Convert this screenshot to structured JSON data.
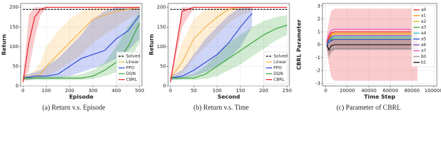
{
  "chart_data": [
    {
      "type": "line",
      "caption": "(a) Return v.s. Episode",
      "xlabel": "Episode",
      "ylabel": "Return",
      "x": [
        0,
        25,
        50,
        75,
        100,
        150,
        200,
        250,
        300,
        350,
        400,
        450,
        500
      ],
      "xlim": [
        -10,
        510
      ],
      "xticks": [
        0,
        100,
        200,
        300,
        400,
        500
      ],
      "ylim": [
        0,
        210
      ],
      "yticks": [
        0,
        50,
        100,
        150,
        200
      ],
      "grid": true,
      "legend": "lower-right",
      "series": [
        {
          "name": "Solved",
          "color": "#000000",
          "dash": true,
          "values": [
            195,
            195,
            195,
            195,
            195,
            195,
            195,
            195,
            195,
            195,
            195,
            195,
            195
          ]
        },
        {
          "name": "Linear",
          "color": "#f5b041",
          "values": [
            20,
            22,
            25,
            30,
            50,
            80,
            110,
            140,
            170,
            180,
            190,
            195,
            200
          ],
          "lower": [
            15,
            15,
            18,
            20,
            25,
            40,
            60,
            80,
            110,
            130,
            150,
            170,
            185
          ],
          "upper": [
            25,
            30,
            40,
            60,
            100,
            140,
            170,
            190,
            200,
            200,
            200,
            200,
            200
          ]
        },
        {
          "name": "PPO",
          "color": "#1f3fd6",
          "values": [
            20,
            22,
            25,
            25,
            25,
            30,
            50,
            70,
            80,
            90,
            120,
            140,
            180
          ],
          "lower": [
            15,
            15,
            18,
            18,
            18,
            20,
            25,
            35,
            45,
            55,
            70,
            90,
            120
          ],
          "upper": [
            25,
            30,
            35,
            40,
            50,
            70,
            100,
            130,
            170,
            190,
            200,
            200,
            200
          ]
        },
        {
          "name": "DQN",
          "color": "#2ca02c",
          "values": [
            20,
            20,
            20,
            20,
            20,
            20,
            20,
            20,
            25,
            40,
            60,
            100,
            160
          ],
          "lower": [
            15,
            15,
            15,
            15,
            15,
            15,
            15,
            15,
            18,
            25,
            35,
            60,
            110
          ],
          "upper": [
            25,
            25,
            25,
            25,
            25,
            25,
            25,
            30,
            40,
            60,
            100,
            150,
            190
          ]
        },
        {
          "name": "CBRL",
          "color": "#e8141c",
          "values": [
            10,
            110,
            175,
            195,
            200,
            200,
            200,
            200,
            200,
            200,
            200,
            200,
            200
          ],
          "lower": [
            5,
            40,
            120,
            180,
            198,
            200,
            200,
            200,
            200,
            200,
            200,
            200,
            200
          ],
          "upper": [
            20,
            180,
            200,
            200,
            200,
            200,
            200,
            200,
            200,
            200,
            200,
            200,
            200
          ]
        }
      ]
    },
    {
      "type": "line",
      "caption": "(b) Return v.s. Time",
      "xlabel": "Second",
      "ylabel": "Return",
      "x": [
        0,
        25,
        50,
        75,
        100,
        125,
        150,
        175,
        200,
        225,
        250
      ],
      "xlim": [
        -5,
        255
      ],
      "xticks": [
        0,
        50,
        100,
        150,
        200,
        250
      ],
      "ylim": [
        0,
        210
      ],
      "yticks": [
        0,
        50,
        100,
        150,
        200
      ],
      "grid": true,
      "legend": "lower-right",
      "series": [
        {
          "name": "Solved",
          "color": "#000000",
          "dash": true,
          "values": [
            195,
            195,
            195,
            195,
            195,
            195,
            195,
            195,
            195,
            195,
            195
          ]
        },
        {
          "name": "Linear",
          "color": "#f5b041",
          "values": [
            20,
            60,
            120,
            150,
            175,
            195,
            200,
            200,
            null,
            null,
            null
          ],
          "lower": [
            15,
            30,
            70,
            100,
            130,
            160,
            180,
            190,
            null,
            null,
            null
          ],
          "upper": [
            25,
            110,
            170,
            195,
            200,
            200,
            200,
            200,
            null,
            null,
            null
          ]
        },
        {
          "name": "PPO",
          "color": "#1f3fd6",
          "values": [
            20,
            25,
            40,
            60,
            80,
            110,
            150,
            185,
            null,
            null,
            null
          ],
          "lower": [
            15,
            18,
            25,
            35,
            50,
            70,
            100,
            150,
            null,
            null,
            null
          ],
          "upper": [
            25,
            40,
            80,
            120,
            150,
            180,
            200,
            200,
            null,
            null,
            null
          ]
        },
        {
          "name": "DQN",
          "color": "#2ca02c",
          "values": [
            20,
            20,
            20,
            30,
            50,
            70,
            90,
            110,
            130,
            145,
            155
          ],
          "lower": [
            15,
            15,
            15,
            18,
            25,
            40,
            55,
            75,
            95,
            115,
            130
          ],
          "upper": [
            25,
            25,
            30,
            50,
            80,
            110,
            130,
            150,
            165,
            175,
            180
          ]
        },
        {
          "name": "CBRL",
          "color": "#e8141c",
          "values": [
            10,
            190,
            200,
            200,
            200,
            200,
            200,
            200,
            200,
            200,
            200
          ],
          "lower": [
            5,
            150,
            198,
            200,
            200,
            200,
            200,
            200,
            200,
            200,
            200
          ],
          "upper": [
            20,
            200,
            200,
            200,
            200,
            200,
            200,
            200,
            200,
            200,
            200
          ]
        }
      ]
    },
    {
      "type": "line",
      "caption": "(c) Parameter of CBRL",
      "xlabel": "Time Step",
      "ylabel": "CBRL Parameter",
      "x": [
        1000,
        3000,
        5000,
        8000,
        20000,
        40000,
        60000,
        85000
      ],
      "xlim": [
        -3000,
        103000
      ],
      "xticks": [
        0,
        20000,
        40000,
        60000,
        80000,
        100000
      ],
      "ylim": [
        -3.2,
        3.2
      ],
      "yticks": [
        -3,
        -2,
        -1,
        0,
        1,
        2,
        3
      ],
      "grid": true,
      "legend": "upper-right",
      "series": [
        {
          "name": "a0",
          "color": "#e8141c",
          "values": [
            0.2,
            0.6,
            0.9,
            1.0,
            1.0,
            1.0,
            1.0,
            1.0
          ],
          "lower": [
            -0.5,
            -1.5,
            -2.5,
            -2.8,
            -2.8,
            -2.8,
            -2.8,
            -2.8
          ],
          "upper": [
            0.8,
            1.8,
            2.6,
            2.8,
            2.8,
            2.8,
            2.8,
            2.8
          ]
        },
        {
          "name": "a1",
          "color": "#ff8c00",
          "values": [
            0.1,
            0.5,
            0.8,
            0.9,
            0.9,
            0.9,
            0.9,
            0.9
          ]
        },
        {
          "name": "a2",
          "color": "#c8b400",
          "values": [
            0.0,
            0.4,
            0.7,
            0.8,
            0.8,
            0.8,
            0.8,
            0.8
          ]
        },
        {
          "name": "a3",
          "color": "#2ca02c",
          "values": [
            0.0,
            0.3,
            0.4,
            0.5,
            0.5,
            0.5,
            0.5,
            0.5
          ]
        },
        {
          "name": "a4",
          "color": "#17becf",
          "values": [
            0.0,
            0.3,
            0.5,
            0.6,
            0.6,
            0.6,
            0.6,
            0.6
          ]
        },
        {
          "name": "a5",
          "color": "#1f3fd6",
          "values": [
            0.0,
            0.2,
            0.3,
            0.4,
            0.4,
            0.4,
            0.4,
            0.4
          ]
        },
        {
          "name": "a6",
          "color": "#7b2fbe",
          "values": [
            0.1,
            0.4,
            0.6,
            0.7,
            0.7,
            0.7,
            0.7,
            0.7
          ]
        },
        {
          "name": "a7",
          "color": "#e040c0",
          "values": [
            0.3,
            0.8,
            1.1,
            1.2,
            1.2,
            1.2,
            1.2,
            1.2
          ]
        },
        {
          "name": "b0",
          "color": "#8c8c8c",
          "values": [
            -0.1,
            -0.5,
            -0.4,
            -0.3,
            -0.3,
            -0.3,
            -0.3,
            -0.3
          ]
        },
        {
          "name": "b1",
          "color": "#000000",
          "values": [
            0.0,
            -0.4,
            -0.1,
            0.0,
            0.0,
            0.0,
            0.0,
            0.0
          ],
          "lower": [
            -0.3,
            -1.0,
            -0.6,
            -0.4,
            -0.4,
            -0.4,
            -0.4,
            -0.4
          ],
          "upper": [
            0.3,
            0.4,
            0.5,
            0.4,
            0.4,
            0.4,
            0.4,
            0.4
          ]
        }
      ]
    }
  ]
}
